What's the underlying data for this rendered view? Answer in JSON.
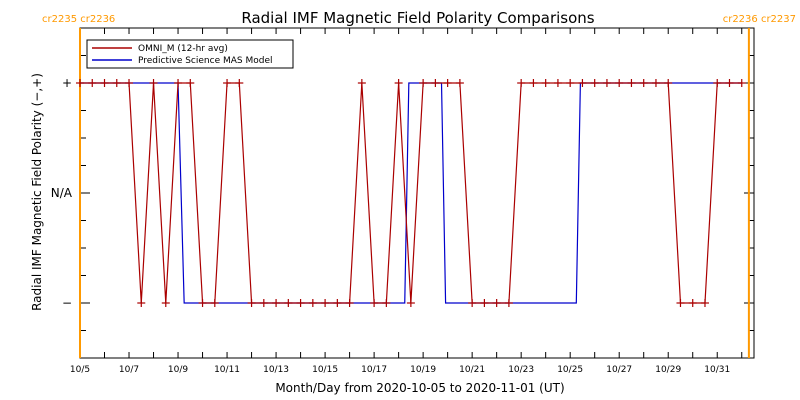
{
  "chart_data": {
    "type": "line",
    "title": "Radial IMF Magnetic Field Polarity Comparisons",
    "xlabel": "Month/Day from 2020-10-05 to 2020-11-01 (UT)",
    "ylabel": "Radial IMF Magnetic Field Polarity (−,+)",
    "x_unit": "days",
    "xlim": [
      "2020-10-05",
      "2020-11-01T12:00"
    ],
    "ylim": [
      -1.5,
      1.5
    ],
    "x_tick_labels": [
      {
        "date": "2020-10-05",
        "label": "10/5"
      },
      {
        "date": "2020-10-07",
        "label": "10/7"
      },
      {
        "date": "2020-10-09",
        "label": "10/9"
      },
      {
        "date": "2020-10-11",
        "label": "10/11"
      },
      {
        "date": "2020-10-13",
        "label": "10/13"
      },
      {
        "date": "2020-10-15",
        "label": "10/15"
      },
      {
        "date": "2020-10-17",
        "label": "10/17"
      },
      {
        "date": "2020-10-19",
        "label": "10/19"
      },
      {
        "date": "2020-10-21",
        "label": "10/21"
      },
      {
        "date": "2020-10-23",
        "label": "10/23"
      },
      {
        "date": "2020-10-25",
        "label": "10/25"
      },
      {
        "date": "2020-10-27",
        "label": "10/27"
      },
      {
        "date": "2020-10-29",
        "label": "10/29"
      },
      {
        "date": "2020-10-31",
        "label": "10/31"
      }
    ],
    "y_tick_labels": [
      {
        "value": 1,
        "label": "+"
      },
      {
        "value": 0,
        "label": "N/A"
      },
      {
        "value": -1,
        "label": "−"
      }
    ],
    "carrington_markers": [
      {
        "date": "2020-10-05",
        "label": "cr2235 cr2236",
        "color": "#ff9900",
        "label_side": "left"
      },
      {
        "date": "2020-11-01T07:00",
        "label": "cr2236 cr2237",
        "color": "#ff9900",
        "label_side": "right"
      }
    ],
    "legend_position": "top-left",
    "series": [
      {
        "name": "OMNI_M (12-hr avg)",
        "color": "#aa0000",
        "markers": "plus",
        "x": [
          "2020-10-05T00:00",
          "2020-10-05T12:00",
          "2020-10-06T00:00",
          "2020-10-06T12:00",
          "2020-10-07T00:00",
          "2020-10-07T12:00",
          "2020-10-08T00:00",
          "2020-10-08T12:00",
          "2020-10-09T00:00",
          "2020-10-09T12:00",
          "2020-10-10T00:00",
          "2020-10-10T12:00",
          "2020-10-11T00:00",
          "2020-10-11T12:00",
          "2020-10-12T00:00",
          "2020-10-12T12:00",
          "2020-10-13T00:00",
          "2020-10-13T12:00",
          "2020-10-14T00:00",
          "2020-10-14T12:00",
          "2020-10-15T00:00",
          "2020-10-15T12:00",
          "2020-10-16T00:00",
          "2020-10-16T12:00",
          "2020-10-17T00:00",
          "2020-10-17T12:00",
          "2020-10-18T00:00",
          "2020-10-18T12:00",
          "2020-10-19T00:00",
          "2020-10-19T12:00",
          "2020-10-20T00:00",
          "2020-10-20T12:00",
          "2020-10-21T00:00",
          "2020-10-21T12:00",
          "2020-10-22T00:00",
          "2020-10-22T12:00",
          "2020-10-23T00:00",
          "2020-10-23T12:00",
          "2020-10-24T00:00",
          "2020-10-24T12:00",
          "2020-10-25T00:00",
          "2020-10-25T12:00",
          "2020-10-26T00:00",
          "2020-10-26T12:00",
          "2020-10-27T00:00",
          "2020-10-27T12:00",
          "2020-10-28T00:00",
          "2020-10-28T12:00",
          "2020-10-29T00:00",
          "2020-10-29T12:00",
          "2020-10-30T00:00",
          "2020-10-30T12:00",
          "2020-10-31T00:00",
          "2020-10-31T12:00",
          "2020-11-01T00:00"
        ],
        "y": [
          1,
          1,
          1,
          1,
          1,
          -1,
          1,
          -1,
          1,
          1,
          -1,
          -1,
          1,
          1,
          -1,
          -1,
          -1,
          -1,
          -1,
          -1,
          -1,
          -1,
          -1,
          1,
          -1,
          -1,
          1,
          -1,
          1,
          1,
          1,
          1,
          -1,
          -1,
          -1,
          -1,
          1,
          1,
          1,
          1,
          1,
          1,
          1,
          1,
          1,
          1,
          1,
          1,
          1,
          -1,
          -1,
          -1,
          1,
          1,
          1
        ]
      },
      {
        "name": "Predictive Science MAS Model",
        "color": "#0000cc",
        "markers": "none",
        "x": [
          "2020-10-05T00:00",
          "2020-10-09T00:00",
          "2020-10-09T06:00",
          "2020-10-18T06:00",
          "2020-10-18T10:00",
          "2020-10-19T18:00",
          "2020-10-19T22:00",
          "2020-10-25T06:00",
          "2020-10-25T10:00",
          "2020-11-01T00:00"
        ],
        "y": [
          1,
          1,
          -1,
          -1,
          1,
          1,
          -1,
          -1,
          1,
          1
        ]
      }
    ]
  }
}
